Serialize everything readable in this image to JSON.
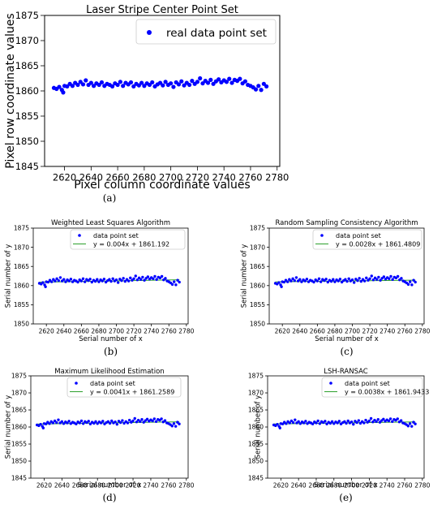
{
  "chart_data": [
    {
      "panel": "a",
      "type": "scatter",
      "title": "Laser Stripe Center Point Set",
      "xlabel": "Pixel column coordinate values",
      "ylabel": "Pixel row coordinate values",
      "xlim": [
        2605,
        2782
      ],
      "ylim": [
        1845,
        1875
      ],
      "xticks": [
        2620,
        2640,
        2660,
        2680,
        2700,
        2720,
        2740,
        2760,
        2780
      ],
      "yticks": [
        1845,
        1850,
        1855,
        1860,
        1865,
        1870,
        1875
      ],
      "legend_position": "top-right",
      "caption": "(a)",
      "series": [
        {
          "name": "real data point set",
          "color": "#0000ff",
          "marker": "dot"
        }
      ]
    },
    {
      "panel": "b",
      "type": "scatter",
      "title": "Weighted Least Squares Algorithm",
      "xlabel": "Serial number of x",
      "ylabel": "Serial number of y",
      "xlim": [
        2605,
        2782
      ],
      "ylim": [
        1850,
        1875
      ],
      "xticks": [
        2620,
        2640,
        2660,
        2680,
        2700,
        2720,
        2740,
        2760,
        2780
      ],
      "yticks": [
        1850,
        1855,
        1860,
        1865,
        1870,
        1875
      ],
      "legend_position": "top-right",
      "caption": "(b)",
      "series": [
        {
          "name": "data point set",
          "color": "#0000ff",
          "marker": "dot"
        },
        {
          "name": "y = 0.004x + 1861.192",
          "color": "#2ca02c",
          "marker": "line",
          "slope": 0.004,
          "intercept": 1861.192
        }
      ]
    },
    {
      "panel": "c",
      "type": "scatter",
      "title": "Random Sampling Consistency Algorithm",
      "xlabel": "Serial number of x",
      "ylabel": "Serial number of y",
      "xlim": [
        2605,
        2782
      ],
      "ylim": [
        1850,
        1875
      ],
      "xticks": [
        2620,
        2640,
        2660,
        2680,
        2700,
        2720,
        2740,
        2760,
        2780
      ],
      "yticks": [
        1850,
        1855,
        1860,
        1865,
        1870,
        1875
      ],
      "legend_position": "top-right",
      "caption": "(c)",
      "series": [
        {
          "name": "data point set",
          "color": "#0000ff",
          "marker": "dot"
        },
        {
          "name": "y = 0.0028x + 1861.4809",
          "color": "#2ca02c",
          "marker": "line",
          "slope": 0.0028,
          "intercept": 1861.4809
        }
      ]
    },
    {
      "panel": "d",
      "type": "scatter",
      "title": "Maximum Likelihood Estimation",
      "xlabel": "Serial number of x",
      "ylabel": "Serial number of y",
      "xlim": [
        2605,
        2782
      ],
      "ylim": [
        1845,
        1875
      ],
      "xticks": [
        2620,
        2640,
        2660,
        2680,
        2700,
        2720,
        2740,
        2760,
        2780
      ],
      "yticks": [
        1845,
        1850,
        1855,
        1860,
        1865,
        1870,
        1875
      ],
      "legend_position": "top-left",
      "caption": "(d)",
      "series": [
        {
          "name": "data point set",
          "color": "#0000ff",
          "marker": "dot"
        },
        {
          "name": "y = 0.0041x + 1861.2589",
          "color": "#2ca02c",
          "marker": "line",
          "slope": 0.0041,
          "intercept": 1861.2589
        }
      ]
    },
    {
      "panel": "e",
      "type": "scatter",
      "title": "LSH-RANSAC",
      "xlabel": "Serial number of x",
      "ylabel": "Serial number of y",
      "xlim": [
        2605,
        2782
      ],
      "ylim": [
        1845,
        1875
      ],
      "xticks": [
        2620,
        2640,
        2660,
        2680,
        2700,
        2720,
        2740,
        2760,
        2780
      ],
      "yticks": [
        1845,
        1850,
        1855,
        1860,
        1865,
        1870,
        1875
      ],
      "legend_position": "top-right",
      "caption": "(e)",
      "series": [
        {
          "name": "data point set",
          "color": "#0000ff",
          "marker": "dot"
        },
        {
          "name": "y = 0.0038x + 1861.9433",
          "color": "#2ca02c",
          "marker": "line",
          "slope": 0.0038,
          "intercept": 1861.9433
        }
      ]
    }
  ],
  "points": {
    "x": [
      2612,
      2614,
      2616,
      2618,
      2619,
      2620,
      2622,
      2624,
      2626,
      2628,
      2630,
      2632,
      2634,
      2636,
      2638,
      2640,
      2642,
      2644,
      2646,
      2648,
      2650,
      2652,
      2654,
      2656,
      2658,
      2660,
      2662,
      2664,
      2666,
      2668,
      2670,
      2672,
      2674,
      2676,
      2678,
      2680,
      2682,
      2684,
      2686,
      2688,
      2690,
      2692,
      2694,
      2696,
      2698,
      2700,
      2702,
      2704,
      2706,
      2708,
      2710,
      2712,
      2714,
      2716,
      2718,
      2720,
      2722,
      2724,
      2726,
      2728,
      2730,
      2732,
      2734,
      2736,
      2738,
      2740,
      2742,
      2744,
      2746,
      2748,
      2750,
      2752,
      2754,
      2756,
      2758,
      2760,
      2762,
      2764,
      2766,
      2768,
      2770,
      2772
    ],
    "y": [
      1860.6,
      1860.4,
      1860.8,
      1860.2,
      1859.7,
      1861.0,
      1860.9,
      1861.4,
      1861.0,
      1861.6,
      1861.2,
      1861.8,
      1861.3,
      1862.1,
      1861.2,
      1861.6,
      1861.0,
      1861.5,
      1861.2,
      1861.7,
      1861.0,
      1861.4,
      1861.2,
      1860.9,
      1861.5,
      1861.2,
      1861.8,
      1861.0,
      1861.6,
      1861.3,
      1861.7,
      1860.9,
      1861.4,
      1861.1,
      1861.6,
      1861.0,
      1861.5,
      1861.2,
      1861.7,
      1860.9,
      1861.3,
      1861.6,
      1861.1,
      1861.8,
      1861.2,
      1861.5,
      1860.8,
      1861.7,
      1861.3,
      1861.9,
      1861.1,
      1861.6,
      1861.2,
      1862.0,
      1861.4,
      1861.8,
      1862.5,
      1861.5,
      1862.0,
      1861.6,
      1862.2,
      1861.4,
      1861.9,
      1862.3,
      1861.7,
      1862.1,
      1861.8,
      1862.4,
      1861.6,
      1862.2,
      1862.0,
      1862.4,
      1861.5,
      1861.9,
      1861.2,
      1861.0,
      1860.7,
      1860.3,
      1861.0,
      1860.2,
      1861.4,
      1860.9
    ]
  }
}
